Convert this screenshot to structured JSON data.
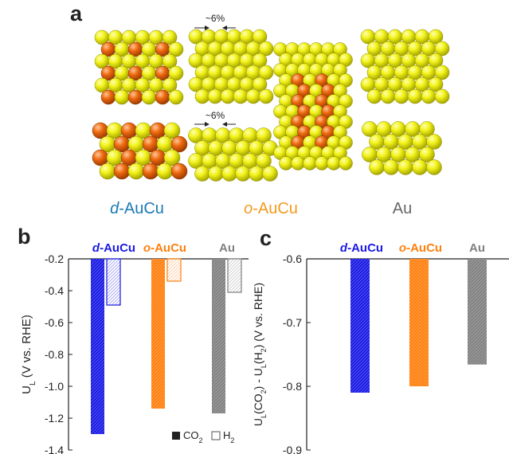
{
  "panels": {
    "a": {
      "letter": "a",
      "strain_top": "~6%",
      "strain_bottom": "~6%",
      "labels": [
        {
          "prefix": "d",
          "suffix": "-AuCu",
          "color": "#1a7ab5"
        },
        {
          "prefix": "o",
          "suffix": "-AuCu",
          "color": "#f39a1d"
        },
        {
          "prefix": "",
          "suffix": "Au",
          "color": "#666666"
        }
      ]
    },
    "b": {
      "letter": "b"
    },
    "c": {
      "letter": "c"
    }
  },
  "colors": {
    "d_AuCu": "#1a1ae6",
    "o_AuCu": "#ff7f0e",
    "Au": "#808080",
    "atom_au": "#e8e815",
    "atom_cu": "#ee6a10"
  },
  "chart_data": [
    {
      "type": "bar",
      "panel": "b",
      "title": "",
      "ylabel": "U_L (V vs. RHE)",
      "xlabel": "",
      "ylim": [
        -1.4,
        -0.2
      ],
      "yticks": [
        -0.2,
        -0.4,
        -0.6,
        -0.8,
        -1.0,
        -1.2,
        -1.4
      ],
      "ytick_labels": [
        "-0.2",
        "-0.4",
        "-0.6",
        "-0.8",
        "-1.0",
        "-1.2",
        "-1.4"
      ],
      "categories": [
        "d-AuCu",
        "o-AuCu",
        "Au"
      ],
      "series": [
        {
          "name": "CO2",
          "values": [
            -1.3,
            -1.14,
            -1.17
          ],
          "fill": "solid-hatched"
        },
        {
          "name": "H2",
          "values": [
            -0.49,
            -0.34,
            -0.41
          ],
          "fill": "light-hatched"
        }
      ],
      "legend": "bottom-right",
      "grid": false
    },
    {
      "type": "bar",
      "panel": "c",
      "title": "",
      "ylabel": "U_L(CO2) - U_L(H2) (V vs. RHE)",
      "xlabel": "",
      "ylim": [
        -0.9,
        -0.6
      ],
      "yticks": [
        -0.6,
        -0.7,
        -0.8,
        -0.9
      ],
      "ytick_labels": [
        "-0.6",
        "-0.7",
        "-0.8",
        "-0.9"
      ],
      "categories": [
        "d-AuCu",
        "o-AuCu",
        "Au"
      ],
      "series": [
        {
          "name": "",
          "values": [
            -0.81,
            -0.8,
            -0.766
          ]
        }
      ],
      "grid": false
    }
  ]
}
